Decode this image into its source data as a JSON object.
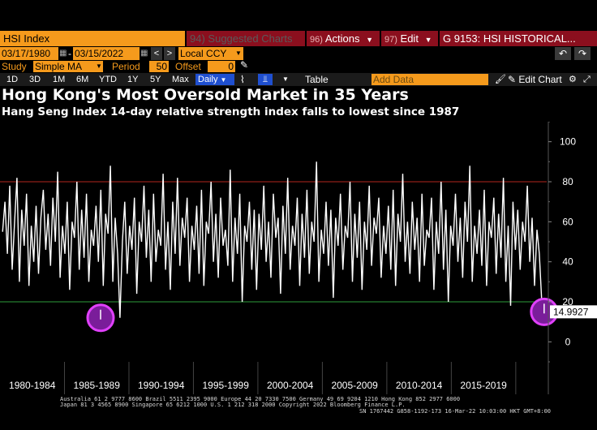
{
  "toolbar1": {
    "security": "HSI Index",
    "suggested_num": "94)",
    "suggested": "Suggested Charts",
    "actions_num": "96)",
    "actions": "Actions",
    "edit_num": "97)",
    "edit": "Edit",
    "function": "G 9153: HSI HISTORICAL..."
  },
  "toolbar2": {
    "start_date": "03/17/1980",
    "end_date": "03/15/2022",
    "currency": "Local CCY"
  },
  "toolbar3": {
    "study_label": "Study",
    "study_value": "Simple MA",
    "period_label": "Period",
    "period_value": "50",
    "offset_label": "Offset",
    "offset_value": "0"
  },
  "toolbar4": {
    "ranges": [
      "1D",
      "3D",
      "1M",
      "6M",
      "YTD",
      "1Y",
      "5Y",
      "Max"
    ],
    "frequency": "Daily",
    "table": "Table",
    "add_data_placeholder": "Add Data",
    "edit_chart": "Edit Chart"
  },
  "chart_data": {
    "type": "line",
    "title": "Hong Kong's Most Oversold Market in 35 Years",
    "subtitle": "Hang Seng Index 14-day relative strength index falls to lowest since 1987",
    "ylim": [
      -10,
      110
    ],
    "y_ticks": [
      0,
      20,
      40,
      60,
      80,
      100
    ],
    "x_tick_labels": [
      "1980-1984",
      "1985-1989",
      "1990-1994",
      "1995-1999",
      "2000-2004",
      "2005-2009",
      "2010-2014",
      "2015-2019"
    ],
    "reference_lines": [
      {
        "value": 80,
        "color": "#b3261e"
      },
      {
        "value": 20,
        "color": "#2e9b3a"
      }
    ],
    "last_value": 14.9927,
    "last_value_label": "14.9927",
    "highlights": [
      {
        "x": 1987.8,
        "y": 12
      },
      {
        "x": 2022.2,
        "y": 15
      }
    ],
    "series": [
      {
        "color": "#ffffff",
        "x_start": 1980.2,
        "x_end": 2022.2,
        "values": [
          55,
          70,
          44,
          78,
          36,
          60,
          82,
          30,
          66,
          48,
          74,
          28,
          58,
          40,
          68,
          34,
          62,
          76,
          46,
          64,
          38,
          72,
          50,
          85,
          32,
          58,
          44,
          70,
          26,
          60,
          52,
          80,
          36,
          66,
          42,
          74,
          30,
          56,
          48,
          68,
          40,
          76,
          28,
          64,
          54,
          88,
          30,
          62,
          44,
          12,
          50,
          70,
          34,
          58,
          46,
          72,
          24,
          60,
          50,
          78,
          42,
          66,
          30,
          74,
          40,
          56,
          48,
          84,
          36,
          60,
          26,
          70,
          44,
          82,
          38,
          62,
          52,
          72,
          30,
          58,
          46,
          68,
          34,
          76,
          28,
          60,
          54,
          80,
          40,
          64,
          32,
          72,
          48,
          56,
          38,
          86,
          30,
          62,
          44,
          74,
          20,
          58,
          50,
          70,
          36,
          66,
          26,
          64,
          46,
          78,
          40,
          60,
          32,
          74,
          52,
          62,
          24,
          68,
          44,
          82,
          36,
          58,
          48,
          72,
          28,
          64,
          42,
          76,
          34,
          60,
          50,
          90,
          30,
          56,
          44,
          70,
          38,
          66,
          22,
          62,
          48,
          74,
          36,
          58,
          52,
          80,
          30,
          64,
          42,
          70,
          26,
          60,
          46,
          78,
          38,
          62,
          54,
          72,
          32,
          58,
          44,
          68,
          36,
          76,
          28,
          64,
          50,
          84,
          40,
          60,
          34,
          70,
          46,
          62,
          30,
          74,
          38,
          56,
          52,
          72,
          26,
          60,
          44,
          80,
          36,
          66,
          20,
          58,
          48,
          74,
          40,
          62,
          32,
          70,
          50,
          88,
          30,
          58,
          44,
          66,
          38,
          76,
          28,
          60,
          52,
          72,
          34,
          64,
          42,
          82,
          30,
          58,
          18,
          70,
          46,
          66,
          36,
          60,
          50,
          78,
          40,
          62,
          28,
          56,
          44,
          20,
          15
        ]
      }
    ]
  },
  "footer": {
    "line1": "Australia 61 2 9777 8600 Brazil 5511 2395 9000 Europe 44 20 7330 7500 Germany 49 69 9204 1210 Hong Kong 852 2977 6000",
    "line2": "Japan 81 3 4565 8900        Singapore 65 6212 1000       U.S. 1 212 318 2000        Copyright 2022 Bloomberg Finance L.P.",
    "line3": "SN 1767442 G858-1192-173 16-Mar-22 10:03:00 HKT  GMT+8:00"
  }
}
